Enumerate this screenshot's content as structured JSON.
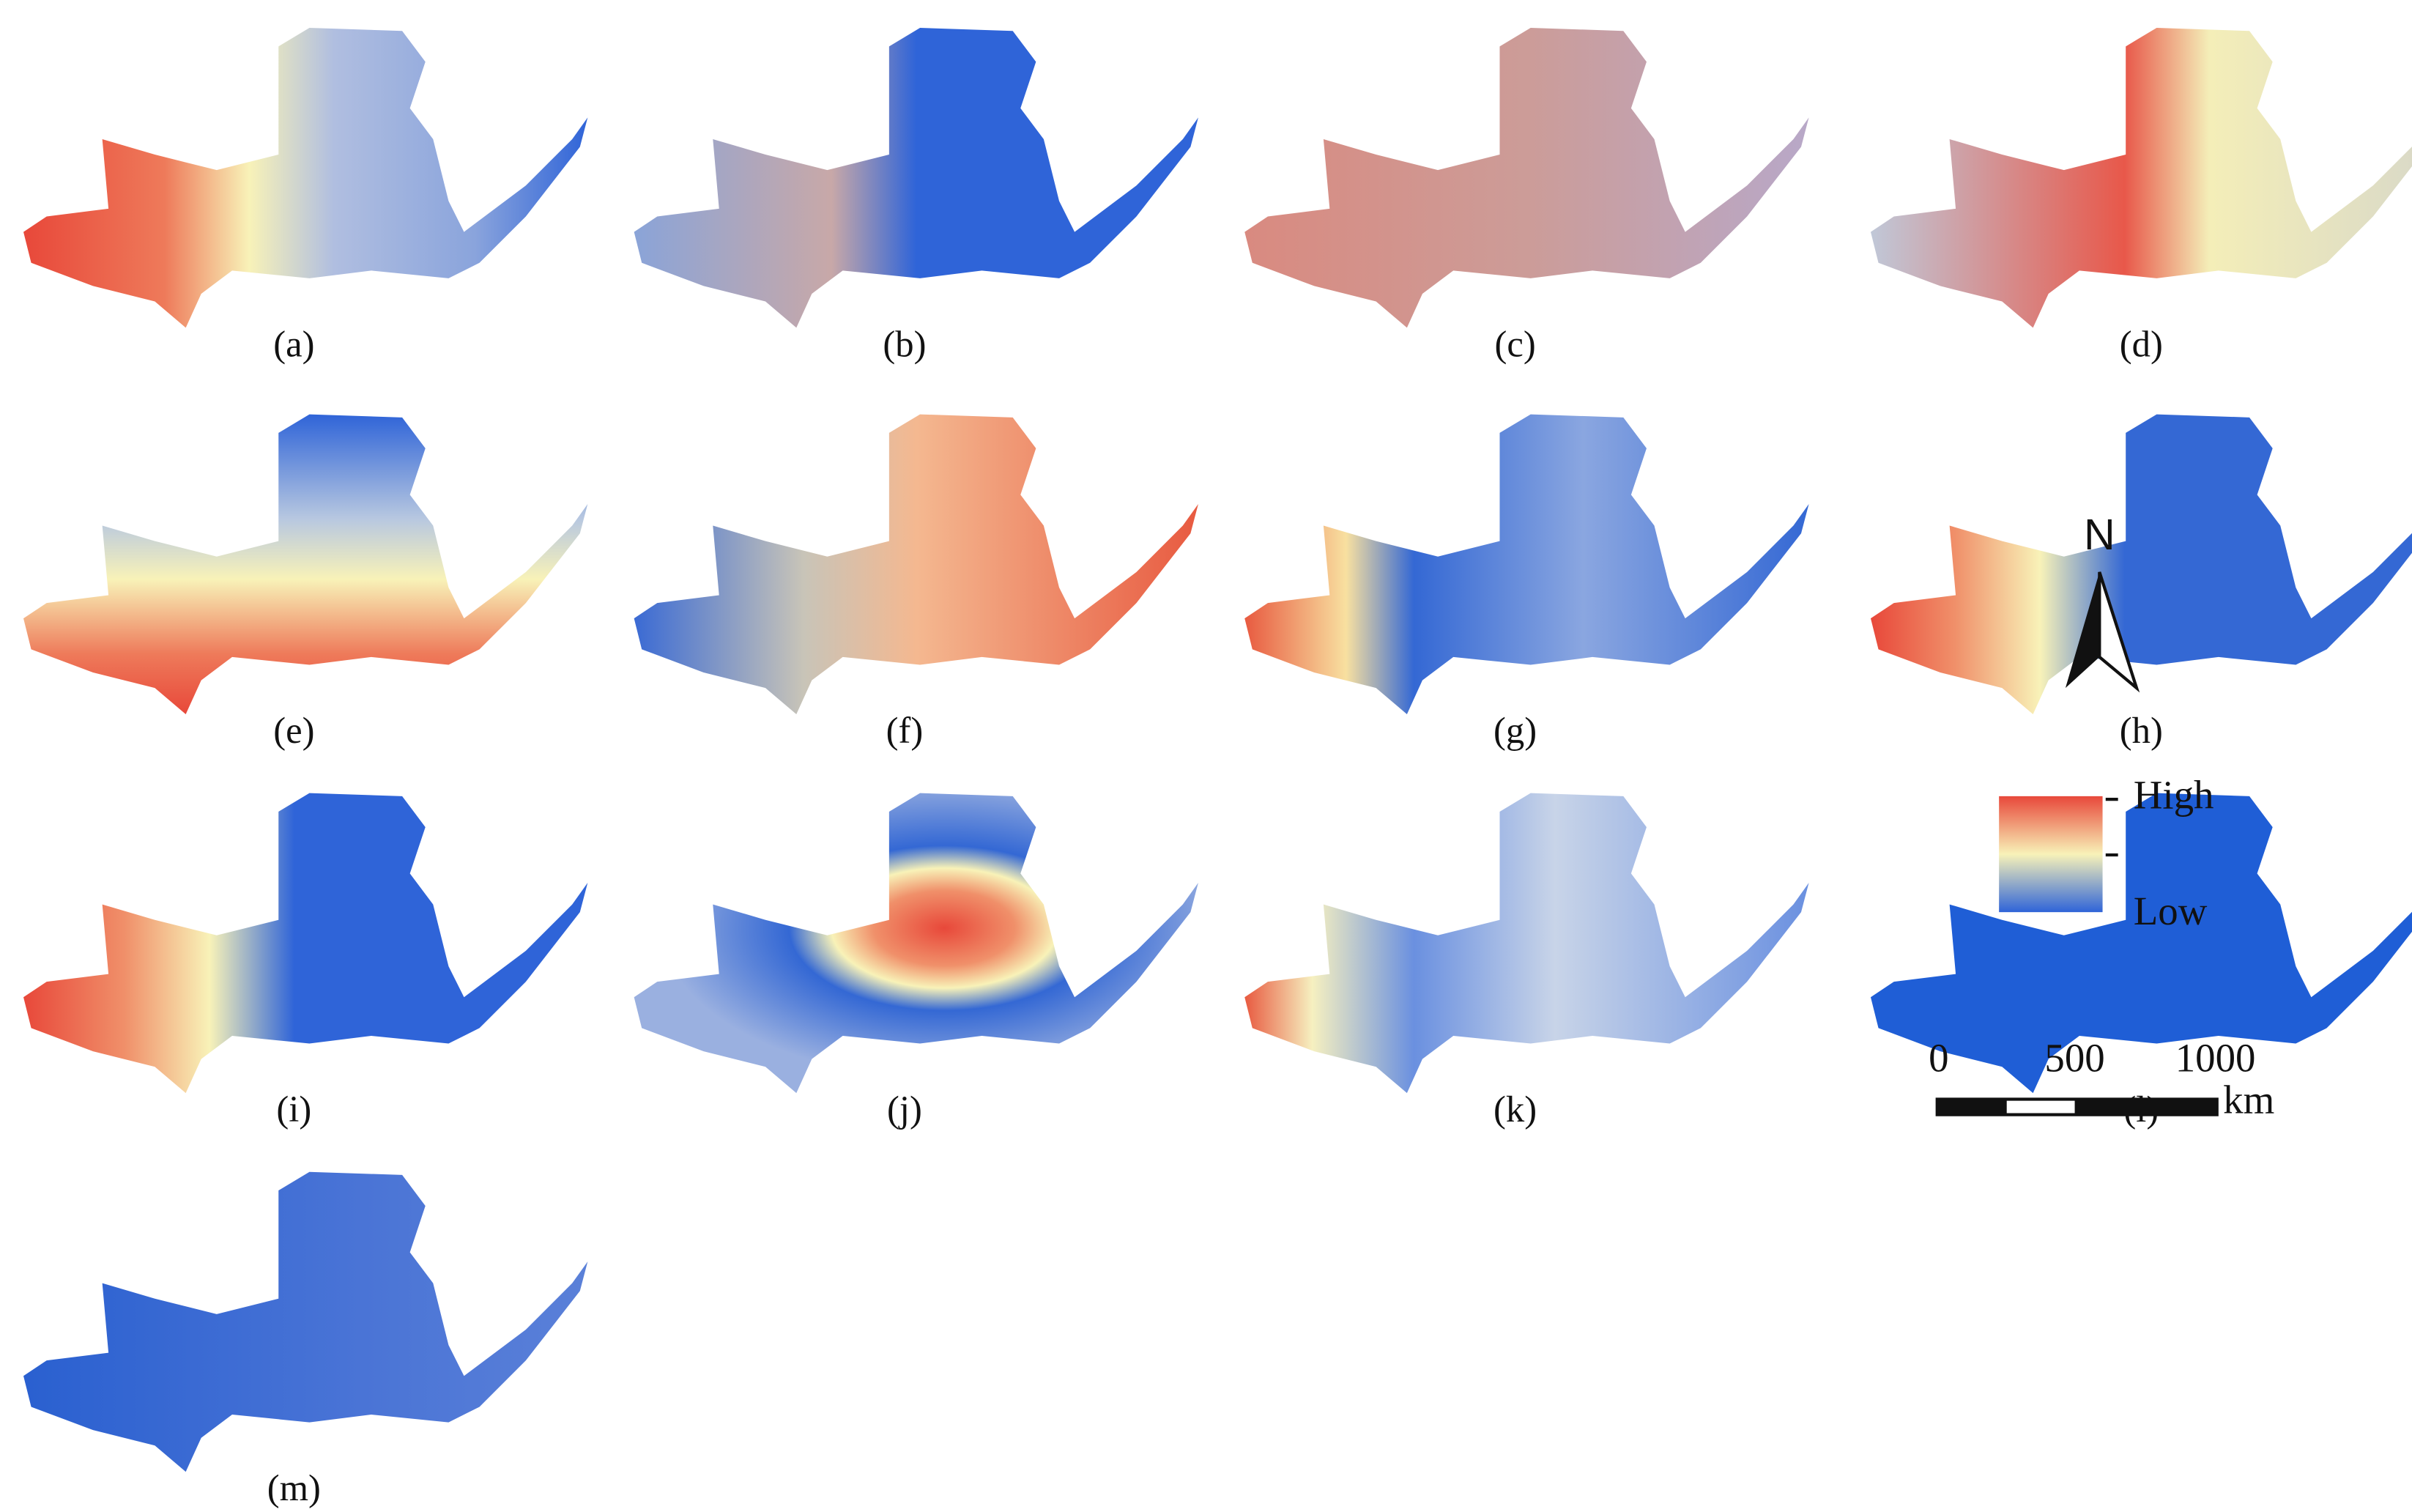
{
  "panels": [
    {
      "label": "(a)"
    },
    {
      "label": "(b)"
    },
    {
      "label": "(c)"
    },
    {
      "label": "(d)"
    },
    {
      "label": "(e)"
    },
    {
      "label": "(f)"
    },
    {
      "label": "(g)"
    },
    {
      "label": "(h)"
    },
    {
      "label": "(i)"
    },
    {
      "label": "(j)"
    },
    {
      "label": "(k)"
    },
    {
      "label": "(l)"
    },
    {
      "label": "(m)"
    }
  ],
  "legend": {
    "high": "High",
    "low": "Low"
  },
  "north": "N",
  "scale_bar": {
    "ticks": [
      0,
      500,
      1000
    ],
    "unit": "km"
  }
}
